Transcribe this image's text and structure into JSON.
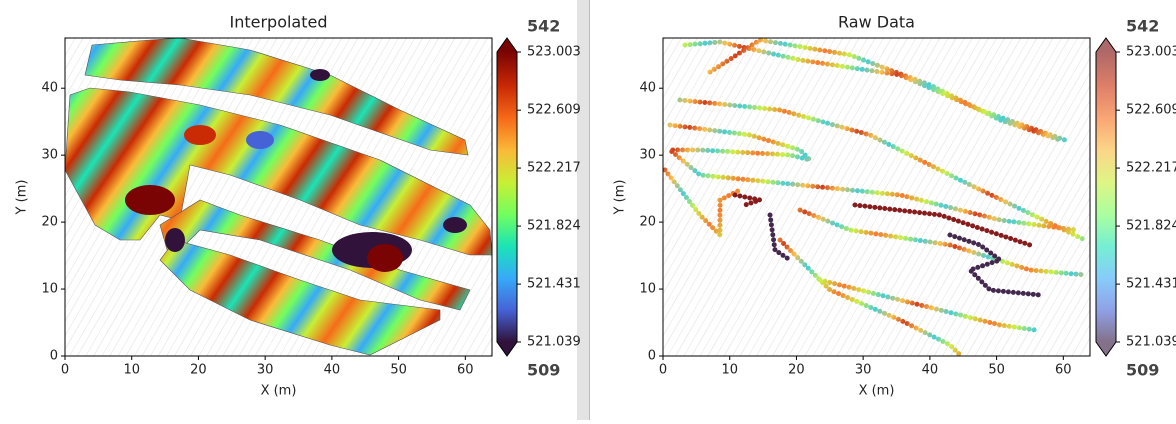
{
  "chart_data": [
    {
      "type": "heatmap",
      "title": "Interpolated",
      "xlabel": "X (m)",
      "ylabel": "Y (m)",
      "xlim": [
        0,
        64
      ],
      "ylim": [
        0,
        47.5
      ],
      "xticks": [
        0,
        10,
        20,
        30,
        40,
        50,
        60
      ],
      "yticks": [
        0,
        10,
        20,
        30,
        40
      ],
      "colorbar": {
        "clim": [
          521.039,
          523.003
        ],
        "ticks": [
          521.039,
          521.431,
          521.824,
          522.217,
          522.609,
          523.003
        ],
        "colormap": "turbo",
        "alpha": 1,
        "top_text": 542,
        "bottom_text": 509
      }
    },
    {
      "type": "scatter",
      "title": "Raw Data",
      "xlabel": "X (m)",
      "ylabel": "Y (m)",
      "xlim": [
        0,
        64
      ],
      "ylim": [
        0,
        47.5
      ],
      "xticks": [
        0,
        10,
        20,
        30,
        40,
        50,
        60
      ],
      "yticks": [
        0,
        10,
        20,
        30,
        40
      ],
      "colorbar": {
        "clim": [
          521.039,
          523.003
        ],
        "ticks": [
          521.039,
          521.431,
          521.824,
          522.217,
          522.609,
          523.003
        ],
        "colormap": "turbo",
        "alpha": 0.6,
        "top_text": 542,
        "bottom_text": 509
      }
    }
  ]
}
